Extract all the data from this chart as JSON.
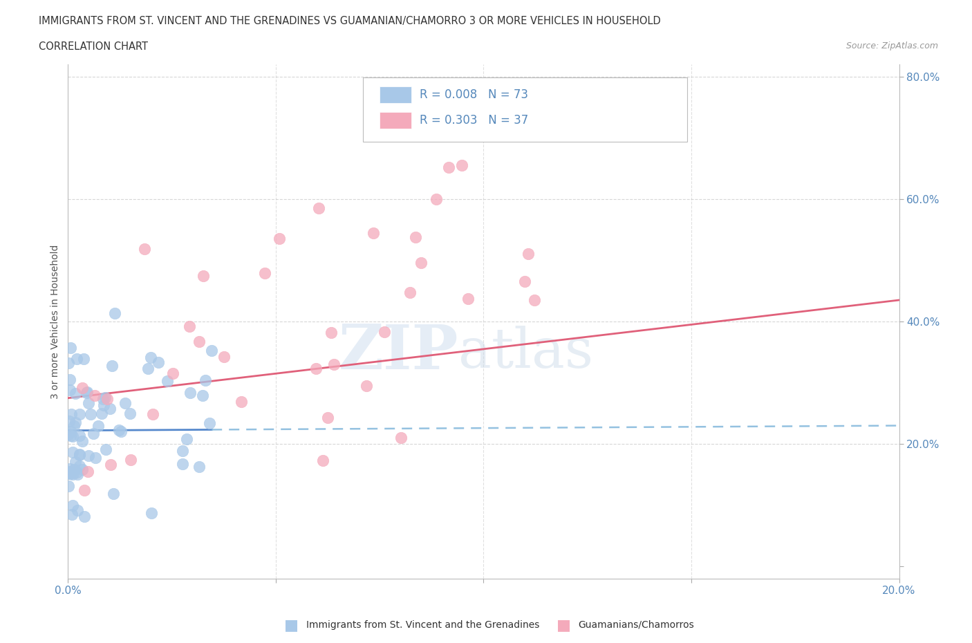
{
  "title_line1": "IMMIGRANTS FROM ST. VINCENT AND THE GRENADINES VS GUAMANIAN/CHAMORRO 3 OR MORE VEHICLES IN HOUSEHOLD",
  "title_line2": "CORRELATION CHART",
  "source_text": "Source: ZipAtlas.com",
  "ylabel": "3 or more Vehicles in Household",
  "legend_label1": "Immigrants from St. Vincent and the Grenadines",
  "legend_label2": "Guamanians/Chamorros",
  "R1": 0.008,
  "N1": 73,
  "R2": 0.303,
  "N2": 37,
  "color1": "#A8C8E8",
  "color2": "#F4AABB",
  "line_color1_solid": "#5588CC",
  "line_color1_dash": "#88BBDD",
  "line_color2": "#E0607A",
  "watermark_zip": "ZIP",
  "watermark_atlas": "atlas",
  "watermark_color_zip": "#CCDDEE",
  "watermark_color_atlas": "#BBCCDD",
  "xmin": 0.0,
  "xmax": 0.2,
  "ymin": -0.02,
  "ymax": 0.82,
  "bg_color": "#FFFFFF",
  "tick_color": "#5588BB",
  "grid_color": "#CCCCCC",
  "ylabel_color": "#555555",
  "title_color": "#333333",
  "source_color": "#999999"
}
